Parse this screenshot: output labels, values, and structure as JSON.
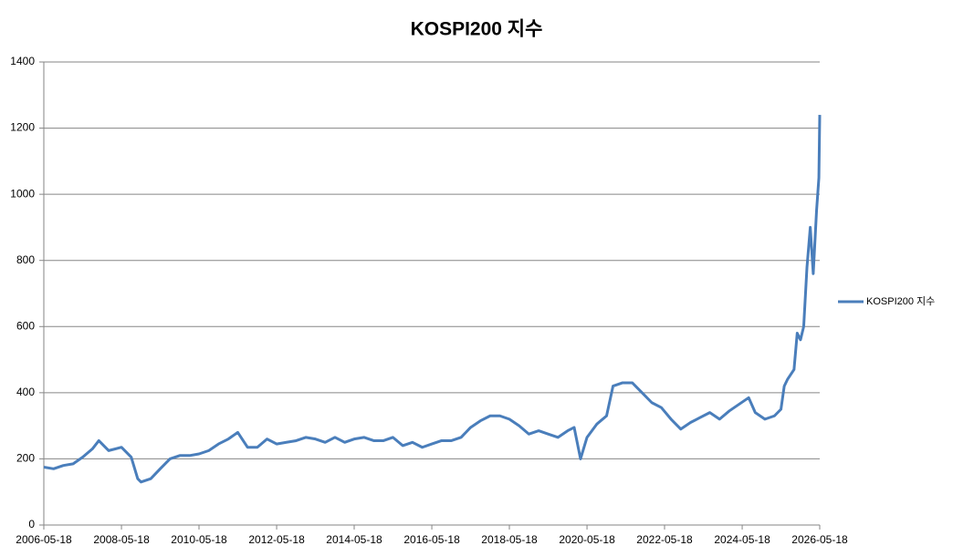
{
  "chart_data": {
    "type": "line",
    "title": "KOSPI200 지수",
    "x": [
      "2006-05-18",
      "2006-08-18",
      "2006-11-18",
      "2007-02-18",
      "2007-05-18",
      "2007-08-18",
      "2007-10-18",
      "2008-01-18",
      "2008-05-18",
      "2008-08-18",
      "2008-10-18",
      "2008-11-18",
      "2009-02-18",
      "2009-05-18",
      "2009-08-18",
      "2009-11-18",
      "2010-02-18",
      "2010-05-18",
      "2010-08-18",
      "2010-11-18",
      "2011-02-18",
      "2011-05-18",
      "2011-08-18",
      "2011-11-18",
      "2012-02-18",
      "2012-05-18",
      "2012-08-18",
      "2012-11-18",
      "2013-02-18",
      "2013-05-18",
      "2013-08-18",
      "2013-11-18",
      "2014-02-18",
      "2014-05-18",
      "2014-08-18",
      "2014-11-18",
      "2015-02-18",
      "2015-05-18",
      "2015-08-18",
      "2015-11-18",
      "2016-02-18",
      "2016-05-18",
      "2016-08-18",
      "2016-11-18",
      "2017-02-18",
      "2017-05-18",
      "2017-08-18",
      "2017-11-18",
      "2018-02-18",
      "2018-05-18",
      "2018-08-18",
      "2018-11-18",
      "2019-02-18",
      "2019-05-18",
      "2019-08-18",
      "2019-11-18",
      "2020-01-18",
      "2020-03-18",
      "2020-05-18",
      "2020-08-18",
      "2020-11-18",
      "2021-01-18",
      "2021-04-18",
      "2021-07-18",
      "2021-10-18",
      "2022-01-18",
      "2022-04-18",
      "2022-07-18",
      "2022-10-18",
      "2023-01-18",
      "2023-04-18",
      "2023-07-18",
      "2023-10-18",
      "2024-01-18",
      "2024-04-18",
      "2024-07-18",
      "2024-09-18",
      "2024-12-18",
      "2025-03-18",
      "2025-05-18",
      "2025-06-18",
      "2025-07-18",
      "2025-09-18",
      "2025-10-18",
      "2025-11-18",
      "2025-12-18",
      "2026-01-18",
      "2026-02-18",
      "2026-03-18",
      "2026-04-18",
      "2026-05-10",
      "2026-05-18"
    ],
    "series": [
      {
        "name": "KOSPI200 지수",
        "color": "#4a7ebb",
        "values": [
          175,
          170,
          180,
          185,
          205,
          230,
          255,
          225,
          235,
          205,
          140,
          130,
          140,
          170,
          200,
          210,
          210,
          215,
          225,
          245,
          260,
          280,
          235,
          235,
          260,
          245,
          250,
          255,
          265,
          260,
          250,
          265,
          250,
          260,
          265,
          255,
          255,
          265,
          240,
          250,
          235,
          245,
          255,
          255,
          265,
          295,
          315,
          330,
          330,
          320,
          300,
          275,
          285,
          275,
          265,
          285,
          295,
          200,
          265,
          305,
          330,
          420,
          430,
          430,
          400,
          370,
          355,
          320,
          290,
          310,
          325,
          340,
          320,
          345,
          365,
          385,
          340,
          320,
          330,
          350,
          420,
          440,
          470,
          580,
          560,
          600,
          780,
          900,
          760,
          950,
          1050,
          1240
        ]
      }
    ],
    "xlim": [
      "2006-05-18",
      "2026-05-18"
    ],
    "xticks": [
      "2006-05-18",
      "2008-05-18",
      "2010-05-18",
      "2012-05-18",
      "2014-05-18",
      "2016-05-18",
      "2018-05-18",
      "2020-05-18",
      "2022-05-18",
      "2024-05-18",
      "2026-05-18"
    ],
    "ylim": [
      0,
      1400
    ],
    "yticks": [
      0,
      200,
      400,
      600,
      800,
      1000,
      1200,
      1400
    ],
    "grid": true,
    "legend": "right"
  }
}
